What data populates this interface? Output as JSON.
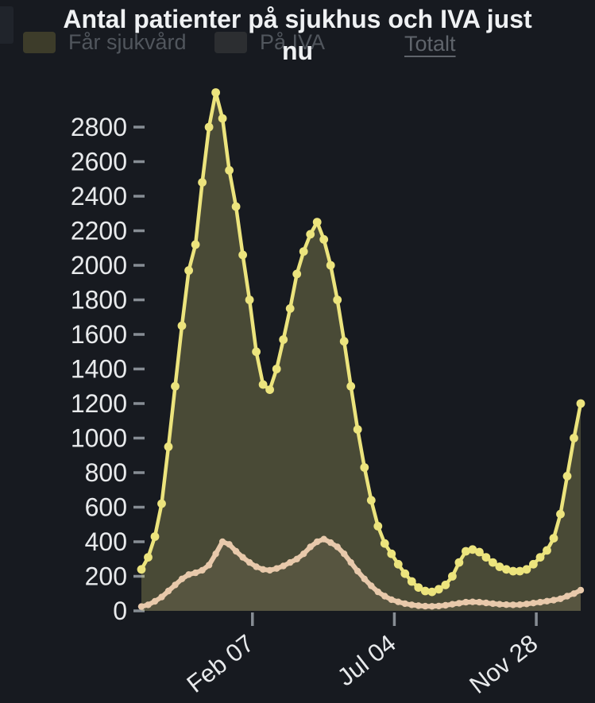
{
  "title": {
    "line1": "Antal patienter på sjukhus och IVA just",
    "line2": "nu"
  },
  "legend": {
    "items": [
      {
        "label": "Får sjukvård",
        "swatch_color": "#3d3c2a"
      },
      {
        "label": "På IVA",
        "swatch_color": "#2c2e31"
      }
    ],
    "link": {
      "label": "Totalt"
    }
  },
  "colors": {
    "background": "#171a20",
    "title_text": "#eff1f3",
    "axis_label": "#e8eaec",
    "tick_mark": "#878d94",
    "hospital_line": "#ece47d",
    "hospital_fill": "rgba(236,228,125,0.24)",
    "iva_line": "#e8c9ab",
    "iva_fill": "rgba(232,201,171,0.09)",
    "legend_text": "#51565d",
    "legend_link_text": "#5f646b"
  },
  "chart_data": {
    "type": "area",
    "title": "Antal patienter på sjukhus och IVA just nu",
    "x_start_date": "2020-10-15",
    "interval_days": 7,
    "grid": false,
    "legend_position": "top",
    "ylim": [
      0,
      3030
    ],
    "y_axis": {
      "min": 0,
      "max_label": 2800,
      "step": 200,
      "labels": [
        "0",
        "200",
        "400",
        "600",
        "800",
        "1000",
        "1200",
        "1400",
        "1600",
        "1800",
        "2000",
        "2200",
        "2400",
        "2600",
        "2800"
      ]
    },
    "x_axis": {
      "tick_labels": [
        "Feb 07",
        "Jul 04",
        "Nov 28"
      ],
      "tick_dates": [
        "2021-02-07",
        "2021-07-04",
        "2021-11-28"
      ],
      "label_rotation_deg": -38
    },
    "series": [
      {
        "name": "Får sjukvård",
        "kind": "hospital",
        "values": [
          240,
          310,
          430,
          620,
          950,
          1300,
          1650,
          1970,
          2120,
          2480,
          2800,
          3000,
          2850,
          2550,
          2340,
          2060,
          1800,
          1500,
          1310,
          1280,
          1400,
          1570,
          1750,
          1950,
          2080,
          2180,
          2250,
          2150,
          2000,
          1800,
          1560,
          1300,
          1050,
          830,
          640,
          490,
          390,
          330,
          270,
          215,
          170,
          135,
          115,
          110,
          125,
          150,
          200,
          280,
          345,
          355,
          340,
          310,
          280,
          255,
          240,
          230,
          230,
          240,
          270,
          310,
          350,
          420,
          560,
          780,
          1000,
          1200
        ]
      },
      {
        "name": "På IVA",
        "kind": "iva",
        "values": [
          25,
          35,
          55,
          80,
          115,
          150,
          185,
          210,
          220,
          235,
          265,
          330,
          400,
          385,
          345,
          310,
          280,
          255,
          240,
          235,
          245,
          260,
          280,
          300,
          330,
          370,
          400,
          415,
          395,
          370,
          330,
          280,
          230,
          185,
          145,
          110,
          85,
          65,
          52,
          42,
          35,
          30,
          27,
          26,
          28,
          32,
          38,
          44,
          50,
          52,
          50,
          46,
          42,
          38,
          36,
          35,
          36,
          40,
          45,
          50,
          56,
          62,
          70,
          85,
          100,
          120
        ]
      }
    ]
  }
}
